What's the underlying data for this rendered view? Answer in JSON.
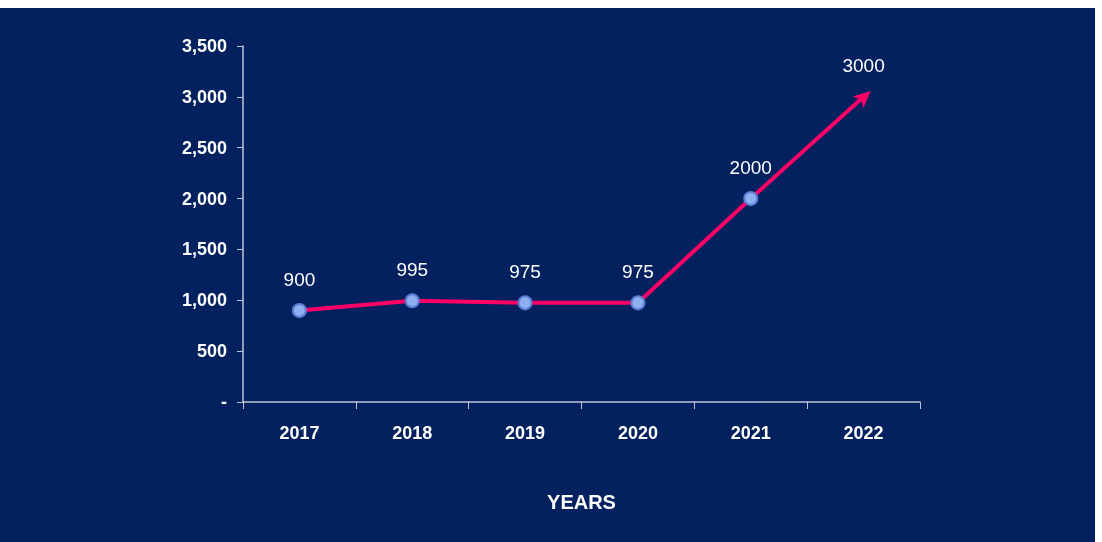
{
  "chart_data": {
    "type": "line",
    "xlabel": "YEARS",
    "categories": [
      "2017",
      "2018",
      "2019",
      "2020",
      "2021",
      "2022"
    ],
    "series": [
      {
        "color": "#ff0066",
        "values": [
          900,
          995,
          975,
          975,
          2000,
          3000
        ]
      }
    ],
    "ylim": [
      0,
      3500
    ],
    "yticks": [
      {
        "value": 0,
        "label": "-"
      },
      {
        "value": 500,
        "label": "500"
      },
      {
        "value": 1000,
        "label": "1,000"
      },
      {
        "value": 1500,
        "label": "1,500"
      },
      {
        "value": 2000,
        "label": "2,000"
      },
      {
        "value": 2500,
        "label": "2,500"
      },
      {
        "value": 3000,
        "label": "3,000"
      },
      {
        "value": 3500,
        "label": "3,500"
      }
    ],
    "data_labels": true,
    "marker": "circle",
    "line_style": "solid",
    "grid": false
  }
}
